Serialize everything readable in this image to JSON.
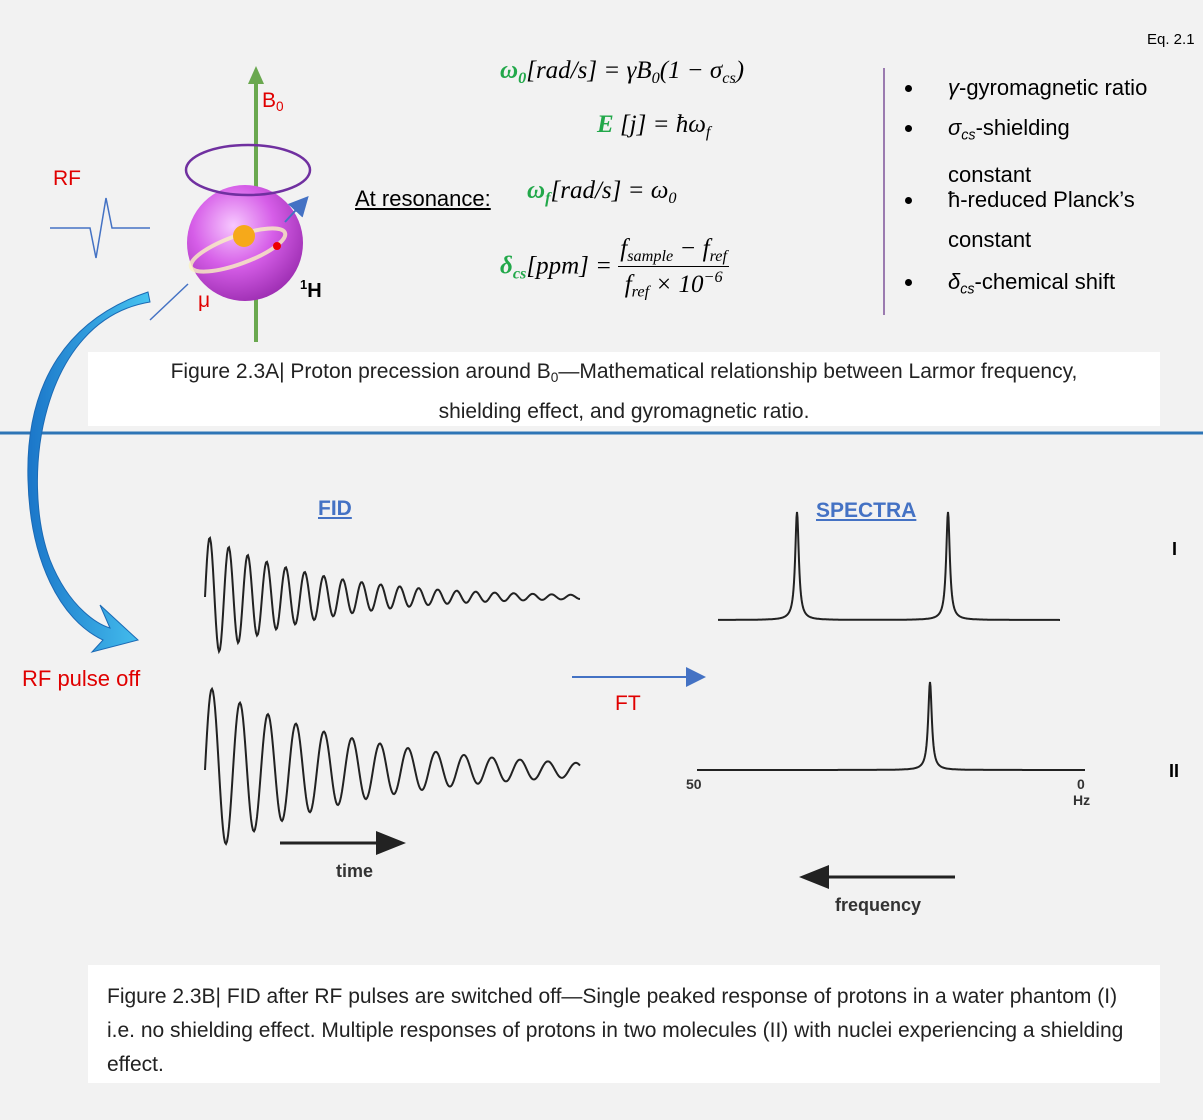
{
  "eq_label": "Eq. 2.1",
  "equations": [
    {
      "parts": [
        "ω",
        "0",
        "[rad/s] = γB",
        "0",
        "(1 − σ",
        "cs",
        ")"
      ]
    },
    {
      "parts": [
        "E",
        " [j] = ħω",
        "f"
      ]
    },
    {
      "label": "At resonance:",
      "parts": [
        "ω",
        "f",
        "[rad/s] = ω",
        "0"
      ]
    },
    {
      "parts": [
        "δ",
        "cs",
        "[ppm] = "
      ],
      "numerator": [
        "f",
        "sample",
        " − f",
        "ref"
      ],
      "denominator": [
        "f",
        "ref",
        " × 10",
        "−6"
      ]
    }
  ],
  "bullets": [
    {
      "parts": [
        "γ",
        "-gyromagnetic ratio"
      ]
    },
    {
      "parts": [
        "σ",
        "cs",
        "-shielding constant"
      ]
    },
    {
      "parts": [
        "ħ-reduced Planck’s constant"
      ]
    },
    {
      "parts": [
        "δ",
        "cs",
        "-chemical shift"
      ]
    }
  ],
  "proton": {
    "field_label": [
      "B",
      "0"
    ],
    "rf_label": "RF",
    "moment_label": "μ",
    "nucleus_label": [
      "1",
      "H"
    ]
  },
  "caption_a": [
    "Figure 2.3A| Proton precession around B",
    "0",
    "—Mathematical relationship between Larmor frequency, shielding effect, and gyromagnetic ratio."
  ],
  "rf_pulse_off": "RF pulse off",
  "ft_label": "FT",
  "fid_title": "FID",
  "spectra_title": "SPECTRA",
  "row_labels": [
    "I",
    "II"
  ],
  "time_label": "time",
  "frequency_label": "frequency",
  "axis_labels": {
    "left": "50",
    "right": "0",
    "unit": "Hz"
  },
  "caption_b": "Figure 2.3B| FID after RF pulses are switched off—Single peaked response of protons in a water phantom (I) i.e. no shielding effect. Multiple responses of protons in two molecules (II) with nuclei experiencing a shielding effect."
}
